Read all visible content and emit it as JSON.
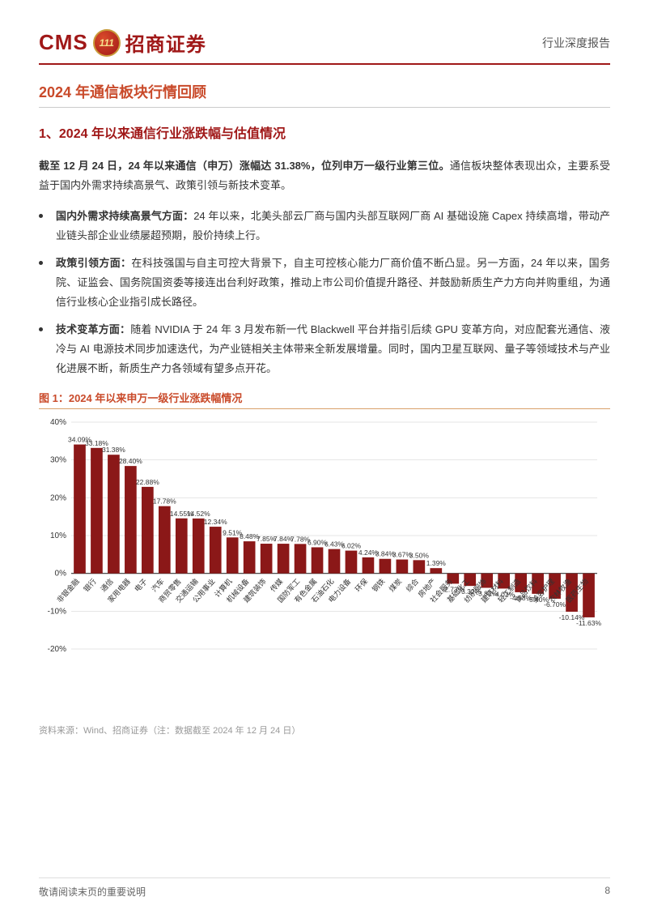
{
  "header": {
    "cms": "CMS",
    "badge": "111",
    "brand_cn": "招商证券",
    "report_type": "行业深度报告"
  },
  "section_title": "2024 年通信板块行情回顾",
  "subsection_title": "1、2024 年以来通信行业涨跌幅与估值情况",
  "lead": {
    "bold": "截至 12 月 24 日，24 年以来通信（申万）涨幅达 31.38%，位列申万一级行业第三位。",
    "rest": "通信板块整体表现出众，主要系受益于国内外需求持续高景气、政策引领与新技术变革。"
  },
  "bullets": [
    {
      "bold": "国内外需求持续高景气方面：",
      "rest": "24 年以来，北美头部云厂商与国内头部互联网厂商 AI 基础设施 Capex 持续高增，带动产业链头部企业业绩屡超预期，股价持续上行。"
    },
    {
      "bold": "政策引领方面：",
      "rest": "在科技强国与自主可控大背景下，自主可控核心能力厂商价值不断凸显。另一方面，24 年以来，国务院、证监会、国务院国资委等接连出台利好政策，推动上市公司价值提升路径、并鼓励新质生产力方向并购重组，为通信行业核心企业指引成长路径。"
    },
    {
      "bold": "技术变革方面：",
      "rest": "随着 NVIDIA 于 24 年 3 月发布新一代 Blackwell 平台并指引后续 GPU 变革方向，对应配套光通信、液冷与 AI 电源技术同步加速迭代，为产业链相关主体带来全新发展增量。同时，国内卫星互联网、量子等领域技术与产业化进展不断，新质生产力各领域有望多点开花。"
    }
  ],
  "chart": {
    "title": "图 1：2024 年以来申万一级行业涨跌幅情况",
    "type": "bar",
    "source": "资料来源：Wind、招商证券（注：数据截至 2024 年 12 月 24 日）",
    "background_color": "#ffffff",
    "bar_color": "#8b1818",
    "axis_color": "#333333",
    "grid_color": "#cccccc",
    "label_color": "#333333",
    "tick_fontsize": 10,
    "value_fontsize": 8.5,
    "category_fontsize": 9,
    "y_min": -20,
    "y_max": 40,
    "y_step": 10,
    "categories": [
      "非银金融",
      "银行",
      "通信",
      "家用电器",
      "电子",
      "汽车",
      "商贸零售",
      "交通运输",
      "公用事业",
      "计算机",
      "机械设备",
      "建筑装饰",
      "传媒",
      "国防军工",
      "有色金属",
      "石油石化",
      "电力设备",
      "环保",
      "钢铁",
      "煤炭",
      "综合",
      "房地产",
      "社会服务",
      "基础化工",
      "纺织服饰",
      "建筑材料",
      "轻工制造",
      "食品饮料",
      "美容护理",
      "农林牧渔",
      "医药生物"
    ],
    "values": [
      34.09,
      33.18,
      31.38,
      28.4,
      22.88,
      17.78,
      14.55,
      14.52,
      12.34,
      9.51,
      8.48,
      7.85,
      7.84,
      7.78,
      6.9,
      6.43,
      6.02,
      4.24,
      3.84,
      3.67,
      3.5,
      1.39,
      -2.73,
      -3.32,
      -3.82,
      -4.02,
      -4.98,
      -5.4,
      -6.7,
      -10.14,
      -11.63
    ]
  },
  "footer": {
    "note": "敬请阅读末页的重要说明",
    "page": "8"
  }
}
